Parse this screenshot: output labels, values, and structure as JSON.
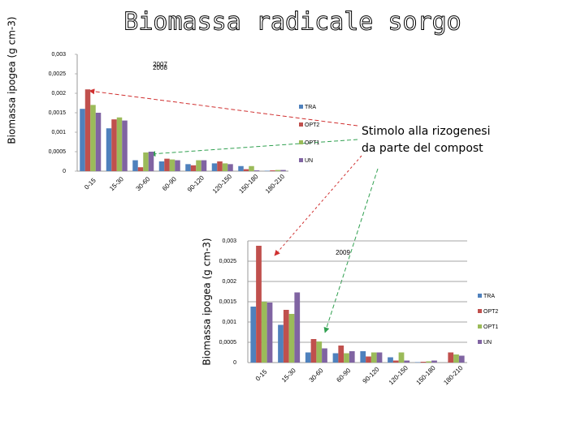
{
  "title": "Biomassa radicale sorgo",
  "callout": [
    "Stimolo alla rizogenesi",
    "da parte del compost"
  ],
  "chart_data": [
    {
      "type": "bar",
      "annotations": [
        "2007",
        "2008"
      ],
      "ylabel": "Biomassa ipogea (g cm-3)",
      "categories": [
        "0-15",
        "15-30",
        "30-60",
        "60-90",
        "90-120",
        "120-150",
        "150-180",
        "180-210"
      ],
      "series": [
        {
          "name": "TRA",
          "color": "#4f81bd",
          "values": [
            0.0016,
            0.0011,
            0.00028,
            0.00025,
            0.00018,
            0.0002,
            0.00013,
            1e-05
          ]
        },
        {
          "name": "OPT2",
          "color": "#c0504d",
          "values": [
            0.0021,
            0.00133,
            0.0001,
            0.00032,
            0.00015,
            0.00025,
            5e-05,
            2e-05
          ]
        },
        {
          "name": "OPT1",
          "color": "#9bbb59",
          "values": [
            0.0017,
            0.00138,
            0.00048,
            0.0003,
            0.00028,
            0.0002,
            0.00013,
            3e-05
          ]
        },
        {
          "name": "UN",
          "color": "#8064a2",
          "values": [
            0.0015,
            0.0013,
            0.0005,
            0.00028,
            0.00028,
            0.00018,
            2e-05,
            3e-05
          ]
        }
      ],
      "ylim": [
        0,
        0.003
      ],
      "yticks": [
        0,
        {
          "value": 0.0005,
          "label": "0,0005"
        },
        {
          "value": 0.001,
          "label": "0,001"
        },
        {
          "value": 0.0015,
          "label": "0,0015"
        },
        {
          "value": 0.002,
          "label": "0,002"
        },
        {
          "value": 0.0025,
          "label": "0,0025"
        },
        {
          "value": 0.003,
          "label": "0,003"
        }
      ],
      "grid": false
    },
    {
      "type": "bar",
      "annotations": [
        "2009"
      ],
      "ylabel": "Biomassa ipogea (g cm-3)",
      "categories": [
        "0-15",
        "15-30",
        "30-60",
        "60-90",
        "90-120",
        "120-150",
        "150-180",
        "180-210"
      ],
      "series": [
        {
          "name": "TRA",
          "color": "#4f81bd",
          "values": [
            0.00138,
            0.00093,
            0.00025,
            0.00023,
            0.00028,
            0.00013,
            1e-05,
            0
          ]
        },
        {
          "name": "OPT2",
          "color": "#c0504d",
          "values": [
            0.00288,
            0.0013,
            0.00058,
            0.00042,
            0.00015,
            5e-05,
            2e-05,
            0.00025
          ]
        },
        {
          "name": "OPT1",
          "color": "#9bbb59",
          "values": [
            0.0015,
            0.0012,
            0.00052,
            0.00023,
            0.00025,
            0.00025,
            3e-05,
            0.0002
          ]
        },
        {
          "name": "UN",
          "color": "#8064a2",
          "values": [
            0.00148,
            0.00173,
            0.00035,
            0.00028,
            0.00025,
            5e-05,
            5e-05,
            0.00017
          ]
        }
      ],
      "ylim": [
        0,
        0.003
      ],
      "yticks": [
        0,
        {
          "value": 0.0005,
          "label": "0,0005"
        },
        {
          "value": 0.001,
          "label": "0,001"
        },
        {
          "value": 0.0015,
          "label": "0,0015"
        },
        {
          "value": 0.002,
          "label": "0,002"
        },
        {
          "value": 0.0025,
          "label": "0,0025"
        },
        {
          "value": 0.003,
          "label": "0,003"
        }
      ],
      "grid": true
    }
  ]
}
